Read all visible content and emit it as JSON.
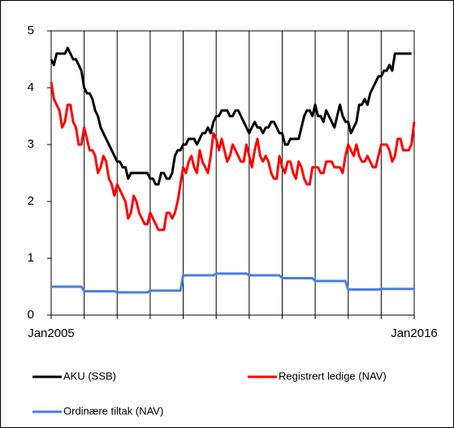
{
  "chart_data": {
    "type": "line",
    "categories": [
      "Jan2005",
      null,
      null,
      null,
      null,
      null,
      null,
      null,
      null,
      null,
      null,
      null,
      null,
      null,
      null,
      null,
      null,
      null,
      null,
      null,
      null,
      null,
      null,
      null,
      null,
      null,
      null,
      null,
      null,
      null,
      null,
      null,
      null,
      null,
      null,
      null,
      null,
      null,
      null,
      null,
      null,
      null,
      null,
      null,
      null,
      null,
      null,
      null,
      null,
      null,
      null,
      null,
      null,
      null,
      null,
      null,
      null,
      null,
      null,
      null,
      null,
      null,
      null,
      null,
      null,
      null,
      null,
      null,
      null,
      null,
      null,
      null,
      null,
      null,
      null,
      null,
      null,
      null,
      null,
      null,
      null,
      null,
      null,
      null,
      null,
      null,
      null,
      null,
      null,
      null,
      null,
      null,
      null,
      null,
      null,
      null,
      null,
      null,
      null,
      null,
      null,
      null,
      null,
      null,
      null,
      null,
      null,
      null,
      null,
      null,
      null,
      null,
      null,
      null,
      null,
      null,
      null,
      null,
      null,
      null,
      null,
      null,
      null,
      null,
      null,
      null,
      null,
      null,
      null,
      null,
      null,
      null,
      "Jan2016"
    ],
    "series": [
      {
        "name": "AKU (SSB)",
        "color": "#000000",
        "values": [
          4.5,
          4.4,
          4.6,
          4.6,
          4.6,
          4.6,
          4.7,
          4.6,
          4.5,
          4.5,
          4.4,
          4.3,
          4.0,
          3.9,
          3.9,
          3.8,
          3.6,
          3.5,
          3.3,
          3.2,
          3.1,
          3.0,
          2.9,
          2.8,
          2.7,
          2.7,
          2.6,
          2.6,
          2.4,
          2.5,
          2.5,
          2.5,
          2.5,
          2.5,
          2.5,
          2.5,
          2.4,
          2.4,
          2.3,
          2.3,
          2.5,
          2.5,
          2.4,
          2.4,
          2.5,
          2.8,
          2.9,
          2.9,
          3.0,
          3.0,
          3.1,
          3.1,
          3.1,
          3.0,
          3.1,
          3.2,
          3.2,
          3.3,
          3.2,
          3.4,
          3.5,
          3.5,
          3.6,
          3.6,
          3.6,
          3.5,
          3.5,
          3.6,
          3.6,
          3.5,
          3.4,
          3.3,
          3.2,
          3.3,
          3.4,
          3.3,
          3.3,
          3.2,
          3.3,
          3.3,
          3.4,
          3.4,
          3.3,
          3.2,
          3.2,
          3.0,
          3.0,
          3.1,
          3.1,
          3.1,
          3.1,
          3.3,
          3.5,
          3.6,
          3.6,
          3.5,
          3.7,
          3.5,
          3.5,
          3.4,
          3.6,
          3.5,
          3.4,
          3.3,
          3.5,
          3.7,
          3.5,
          3.4,
          3.4,
          3.2,
          3.3,
          3.4,
          3.7,
          3.7,
          3.8,
          3.7,
          3.9,
          4.0,
          4.1,
          4.2,
          4.2,
          4.3,
          4.3,
          4.4,
          4.3,
          4.6,
          4.6,
          4.6,
          4.6,
          4.6,
          4.6,
          4.6,
          null
        ]
      },
      {
        "name": "Registrert ledige (NAV)",
        "color": "#ff0000",
        "values": [
          4.1,
          3.8,
          3.7,
          3.6,
          3.3,
          3.4,
          3.7,
          3.7,
          3.4,
          3.3,
          3.0,
          3.0,
          3.3,
          3.1,
          2.9,
          2.9,
          2.8,
          2.5,
          2.6,
          2.8,
          2.7,
          2.4,
          2.3,
          2.1,
          2.3,
          2.2,
          2.1,
          2.0,
          1.7,
          1.8,
          2.1,
          2.0,
          1.8,
          1.7,
          1.6,
          1.6,
          1.8,
          1.7,
          1.6,
          1.5,
          1.5,
          1.5,
          1.8,
          1.8,
          1.7,
          1.8,
          2.0,
          2.3,
          2.6,
          2.5,
          2.7,
          2.8,
          2.6,
          2.5,
          2.9,
          2.7,
          2.6,
          2.5,
          2.8,
          3.2,
          3.1,
          2.9,
          3.1,
          2.9,
          2.7,
          2.8,
          3.0,
          2.9,
          2.8,
          2.7,
          2.7,
          3.0,
          2.8,
          2.6,
          2.9,
          3.1,
          2.8,
          2.7,
          2.8,
          2.7,
          2.5,
          2.4,
          2.4,
          2.8,
          2.6,
          2.5,
          2.7,
          2.7,
          2.5,
          2.4,
          2.7,
          2.6,
          2.4,
          2.3,
          2.3,
          2.6,
          2.6,
          2.6,
          2.5,
          2.5,
          2.7,
          2.7,
          2.7,
          2.6,
          2.6,
          2.6,
          2.5,
          2.8,
          3.0,
          2.9,
          2.8,
          3.0,
          2.8,
          2.7,
          2.7,
          2.8,
          2.7,
          2.6,
          2.6,
          2.8,
          3.0,
          3.0,
          3.0,
          2.9,
          2.7,
          2.8,
          3.1,
          3.1,
          2.9,
          2.9,
          2.9,
          3.0,
          3.4
        ]
      },
      {
        "name": "Ordinære tiltak  (NAV)",
        "color": "#4a7fe0",
        "values": [
          0.5,
          0.5,
          0.5,
          0.5,
          0.5,
          0.5,
          0.5,
          0.5,
          0.5,
          0.5,
          0.5,
          0.5,
          0.42,
          0.42,
          0.42,
          0.42,
          0.42,
          0.42,
          0.42,
          0.42,
          0.42,
          0.42,
          0.42,
          0.42,
          0.4,
          0.4,
          0.4,
          0.4,
          0.4,
          0.4,
          0.4,
          0.4,
          0.4,
          0.4,
          0.4,
          0.4,
          0.43,
          0.43,
          0.43,
          0.43,
          0.43,
          0.43,
          0.43,
          0.43,
          0.43,
          0.43,
          0.43,
          0.43,
          0.7,
          0.7,
          0.7,
          0.7,
          0.7,
          0.7,
          0.7,
          0.7,
          0.7,
          0.7,
          0.7,
          0.7,
          0.73,
          0.73,
          0.73,
          0.73,
          0.73,
          0.73,
          0.73,
          0.73,
          0.73,
          0.73,
          0.73,
          0.73,
          0.7,
          0.7,
          0.7,
          0.7,
          0.7,
          0.7,
          0.7,
          0.7,
          0.7,
          0.7,
          0.7,
          0.7,
          0.65,
          0.65,
          0.65,
          0.65,
          0.65,
          0.65,
          0.65,
          0.65,
          0.65,
          0.65,
          0.65,
          0.65,
          0.6,
          0.6,
          0.6,
          0.6,
          0.6,
          0.6,
          0.6,
          0.6,
          0.6,
          0.6,
          0.6,
          0.6,
          0.45,
          0.45,
          0.45,
          0.45,
          0.45,
          0.45,
          0.45,
          0.45,
          0.45,
          0.45,
          0.45,
          0.45,
          0.46,
          0.46,
          0.46,
          0.46,
          0.46,
          0.46,
          0.46,
          0.46,
          0.46,
          0.46,
          0.46,
          0.46,
          0.46
        ]
      }
    ],
    "ylim": [
      0,
      5
    ],
    "yticks": [
      0,
      1,
      2,
      3,
      4,
      5
    ],
    "grid": "x",
    "legend": "bottom"
  }
}
